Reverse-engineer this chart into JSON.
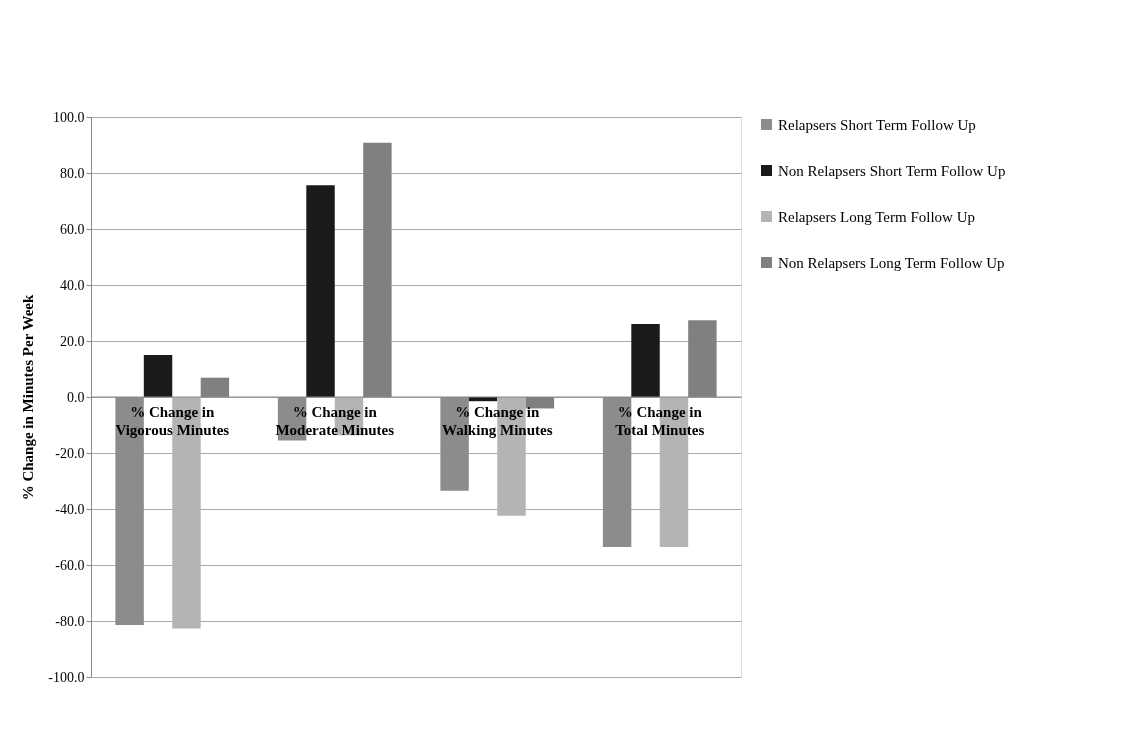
{
  "chart_data": {
    "type": "bar",
    "ylabel": "% Change in Minutes Per Week",
    "categories": [
      "% Change in Vigorous Minutes",
      "% Change in Moderate Minutes",
      "% Change in Walking Minutes",
      "% Change in Total Minutes"
    ],
    "series": [
      {
        "name": "Relapsers Short Term Follow Up",
        "color": "#8c8c8c",
        "values": [
          -81.4,
          -15.5,
          -33.5,
          -53.6
        ]
      },
      {
        "name": "Non Relapsers Short Term Follow Up",
        "color": "#1a1a1a",
        "values": [
          15.0,
          75.6,
          -1.5,
          26.1
        ]
      },
      {
        "name": "Relapsers Long Term Follow Up",
        "color": "#b4b4b4",
        "values": [
          -82.7,
          -13.7,
          -42.4,
          -53.6
        ]
      },
      {
        "name": "Non Relapsers Long Term Follow Up",
        "color": "#808080",
        "values": [
          6.9,
          90.8,
          -4.1,
          27.4
        ]
      }
    ],
    "ylim": [
      -100,
      100
    ],
    "yticks": [
      {
        "value": -100,
        "label": "-100.0"
      },
      {
        "value": -80,
        "label": "-80.0"
      },
      {
        "value": -60,
        "label": "-60.0"
      },
      {
        "value": -40,
        "label": "-40.0"
      },
      {
        "value": -20,
        "label": "-20.0"
      },
      {
        "value": 0,
        "label": "0.0"
      },
      {
        "value": 20,
        "label": "20.0"
      },
      {
        "value": 40,
        "label": "40.0"
      },
      {
        "value": 60,
        "label": "60.0"
      },
      {
        "value": 80,
        "label": "80.0"
      },
      {
        "value": 100,
        "label": "100.0"
      }
    ],
    "grid": "y",
    "legend": "top right"
  }
}
